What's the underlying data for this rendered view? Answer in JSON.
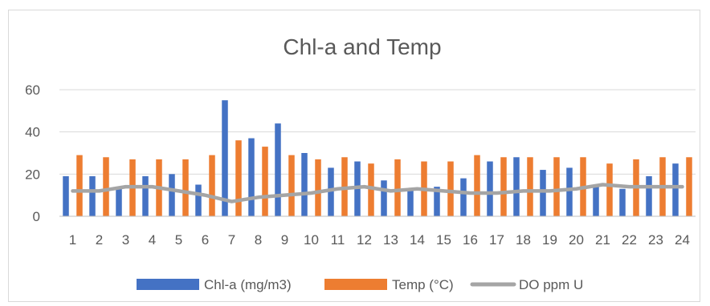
{
  "chart_data": {
    "type": "bar",
    "title": "Chl-a and Temp",
    "xlabel": "",
    "ylabel": "",
    "ylim": [
      0,
      60
    ],
    "yticks": [
      "0",
      "20",
      "40",
      "60"
    ],
    "grid": true,
    "legend_position": "bottom",
    "categories": [
      "1",
      "2",
      "3",
      "4",
      "5",
      "6",
      "7",
      "8",
      "9",
      "10",
      "11",
      "12",
      "13",
      "14",
      "15",
      "16",
      "17",
      "18",
      "19",
      "20",
      "21",
      "22",
      "23",
      "24"
    ],
    "series": [
      {
        "name": "Chl-a (mg/m3)",
        "kind": "bar",
        "color": "#4472c4",
        "values": [
          19,
          19,
          14,
          19,
          20,
          15,
          55,
          37,
          44,
          30,
          23,
          26,
          17,
          13,
          14,
          18,
          26,
          28,
          22,
          23,
          14,
          13,
          19,
          25
        ]
      },
      {
        "name": "Temp (°C)",
        "kind": "bar",
        "color": "#ed7d31",
        "values": [
          29,
          28,
          27,
          27,
          27,
          29,
          36,
          33,
          29,
          27,
          28,
          25,
          27,
          26,
          26,
          29,
          28,
          28,
          28,
          28,
          25,
          27,
          28,
          28
        ]
      },
      {
        "name": "DO ppm U",
        "kind": "line",
        "color": "#a5a5a5",
        "values": [
          12,
          12,
          14,
          14,
          12,
          10,
          7,
          9,
          10,
          11,
          13,
          14,
          12,
          13,
          12,
          11,
          11,
          12,
          12,
          13,
          15,
          14,
          14,
          14
        ]
      }
    ]
  }
}
